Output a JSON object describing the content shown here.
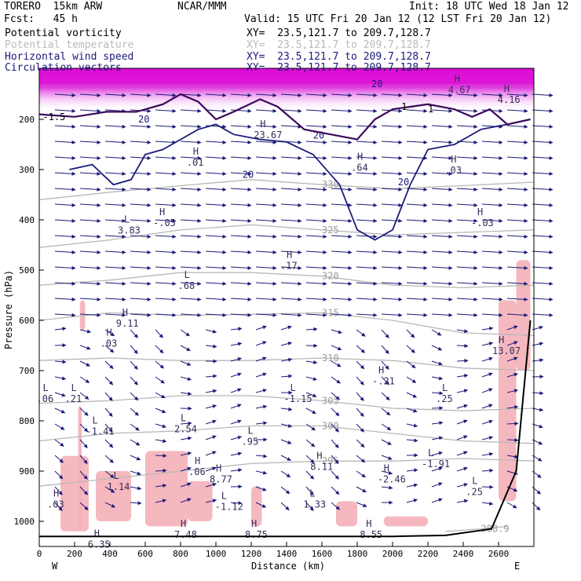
{
  "header": {
    "model": "TORERO  15km ARW",
    "center": "NCAR/MMM",
    "init": "Init: 18 UTC Wed 18 Jan 12",
    "fcst": "Fcst:   45 h",
    "valid": "Valid: 15 UTC Fri 20 Jan 12 (12 LST Fri 20 Jan 12)"
  },
  "fields": [
    {
      "name": "Potential vorticity",
      "color": "#000000",
      "xy": "XY=  23.5,121.7 to 209.7,128.7"
    },
    {
      "name": "Potential temperature",
      "color": "#bbbbbb",
      "xy": "XY=  23.5,121.7 to 209.7,128.7"
    },
    {
      "name": "Horizontal wind speed",
      "color": "#1a1a7a",
      "xy": "XY=  23.5,121.7 to 209.7,128.7"
    },
    {
      "name": "Circulation vectors",
      "color": "#1a1a7a",
      "xy": "XY=  23.5,121.7 to 209.7,128.7"
    }
  ],
  "chart_data": {
    "type": "cross-section",
    "xlabel": "Distance (km)",
    "ylabel": "Pressure (hPa)",
    "x_ticks": [
      0,
      200,
      400,
      600,
      800,
      1000,
      1200,
      1400,
      1600,
      1800,
      2000,
      2200,
      2400,
      2600
    ],
    "y_ticks": [
      200,
      300,
      400,
      500,
      600,
      700,
      800,
      900,
      1000
    ],
    "xlim": [
      0,
      2800
    ],
    "ylim": [
      1080,
      100
    ],
    "y_scale": "linear-pressure",
    "x_end_labels": {
      "left": "W",
      "right": "E"
    },
    "theta_isentropes": [
      {
        "value": 330,
        "label": "330",
        "points": [
          [
            0,
            360
          ],
          [
            400,
            345
          ],
          [
            800,
            332
          ],
          [
            1200,
            320
          ],
          [
            1600,
            330
          ],
          [
            2000,
            338
          ],
          [
            2400,
            332
          ],
          [
            2800,
            325
          ]
        ]
      },
      {
        "value": 325,
        "label": "325",
        "points": [
          [
            0,
            455
          ],
          [
            400,
            440
          ],
          [
            800,
            420
          ],
          [
            1200,
            410
          ],
          [
            1600,
            420
          ],
          [
            2000,
            430
          ],
          [
            2400,
            425
          ],
          [
            2800,
            420
          ]
        ]
      },
      {
        "value": 320,
        "label": "320",
        "points": [
          [
            0,
            530
          ],
          [
            400,
            520
          ],
          [
            800,
            505
          ],
          [
            1200,
            505
          ],
          [
            1600,
            512
          ],
          [
            2000,
            530
          ],
          [
            2400,
            535
          ],
          [
            2800,
            530
          ]
        ]
      },
      {
        "value": 315,
        "label": "315",
        "points": [
          [
            0,
            600
          ],
          [
            400,
            585
          ],
          [
            800,
            590
          ],
          [
            1200,
            588
          ],
          [
            1600,
            585
          ],
          [
            2000,
            600
          ],
          [
            2400,
            625
          ],
          [
            2800,
            630
          ]
        ]
      },
      {
        "value": 310,
        "label": "310",
        "points": [
          [
            0,
            680
          ],
          [
            400,
            675
          ],
          [
            800,
            680
          ],
          [
            1200,
            680
          ],
          [
            1600,
            675
          ],
          [
            2000,
            680
          ],
          [
            2400,
            695
          ],
          [
            2800,
            700
          ]
        ]
      },
      {
        "value": 305,
        "label": "305",
        "points": [
          [
            0,
            765
          ],
          [
            400,
            760
          ],
          [
            800,
            750
          ],
          [
            1200,
            750
          ],
          [
            1600,
            760
          ],
          [
            2000,
            775
          ],
          [
            2400,
            780
          ],
          [
            2800,
            775
          ]
        ]
      },
      {
        "value": 300,
        "label": "300",
        "points": [
          [
            0,
            840
          ],
          [
            400,
            825
          ],
          [
            800,
            820
          ],
          [
            1200,
            810
          ],
          [
            1600,
            810
          ],
          [
            2000,
            825
          ],
          [
            2400,
            840
          ],
          [
            2800,
            845
          ]
        ]
      },
      {
        "value": 295,
        "label": "295",
        "points": [
          [
            0,
            930
          ],
          [
            400,
            915
          ],
          [
            800,
            900
          ],
          [
            1200,
            885
          ],
          [
            1600,
            880
          ],
          [
            2000,
            880
          ],
          [
            2400,
            875
          ],
          [
            2800,
            880
          ]
        ]
      },
      {
        "value": 288.9,
        "label": "288.9",
        "points": [
          [
            2300,
            1020
          ],
          [
            2500,
            1015
          ],
          [
            2650,
            1010
          ]
        ]
      }
    ],
    "pv_contour_labels": [
      "-1.5",
      "1",
      "1"
    ],
    "wind_speed_labels": [
      {
        "text": "20",
        "x": 560,
        "y": 200
      },
      {
        "text": "20",
        "x": 1150,
        "y": 310
      },
      {
        "text": "20",
        "x": 1550,
        "y": 232
      },
      {
        "text": "20",
        "x": 2030,
        "y": 325
      },
      {
        "text": "20",
        "x": 1880,
        "y": 130
      }
    ],
    "extrema": [
      {
        "type": "H",
        "value": ".01",
        "x": 870,
        "y": 280
      },
      {
        "type": "H",
        "value": "-.05",
        "x": 680,
        "y": 400
      },
      {
        "type": "L",
        "value": "3.83",
        "x": 480,
        "y": 415
      },
      {
        "type": "H",
        "value": "23.67",
        "x": 1250,
        "y": 225
      },
      {
        "type": "H",
        "value": "4.67",
        "x": 2350,
        "y": 135
      },
      {
        "type": "H",
        "value": "4.16",
        "x": 2630,
        "y": 155
      },
      {
        "type": "H",
        "value": ".64",
        "x": 1800,
        "y": 290
      },
      {
        "type": "H",
        "value": ".03",
        "x": 2330,
        "y": 295
      },
      {
        "type": "H",
        "value": "-.03",
        "x": 2480,
        "y": 400
      },
      {
        "type": "H",
        "value": ".17",
        "x": 1400,
        "y": 485
      },
      {
        "type": "L",
        "value": ".68",
        "x": 820,
        "y": 525
      },
      {
        "type": "H",
        "value": "9.11",
        "x": 470,
        "y": 600
      },
      {
        "type": "H",
        "value": ".03",
        "x": 380,
        "y": 640
      },
      {
        "type": "H",
        "value": "13.07",
        "x": 2600,
        "y": 655
      },
      {
        "type": "H",
        "value": "-.21",
        "x": 1920,
        "y": 715
      },
      {
        "type": "L",
        "value": "-1.15",
        "x": 1420,
        "y": 750
      },
      {
        "type": "L",
        "value": ".21",
        "x": 180,
        "y": 750
      },
      {
        "type": "L",
        "value": ".06",
        "x": 20,
        "y": 750
      },
      {
        "type": "L",
        "value": ".25",
        "x": 2280,
        "y": 750
      },
      {
        "type": "L",
        "value": "-1.41",
        "x": 300,
        "y": 815
      },
      {
        "type": "L",
        "value": "2.54",
        "x": 800,
        "y": 810
      },
      {
        "type": "L",
        "value": ".95",
        "x": 1180,
        "y": 835
      },
      {
        "type": "H",
        "value": "8.11",
        "x": 1570,
        "y": 885
      },
      {
        "type": "L",
        "value": "-1.91",
        "x": 2200,
        "y": 880
      },
      {
        "type": "H",
        "value": ".06",
        "x": 880,
        "y": 895
      },
      {
        "type": "H",
        "value": "8.77",
        "x": 1000,
        "y": 910
      },
      {
        "type": "H",
        "value": "-2.46",
        "x": 1950,
        "y": 910
      },
      {
        "type": "L",
        "value": "1.14",
        "x": 420,
        "y": 925
      },
      {
        "type": "L",
        "value": "-1.12",
        "x": 1030,
        "y": 965
      },
      {
        "type": "L",
        "value": "1.33",
        "x": 1530,
        "y": 960
      },
      {
        "type": "L",
        "value": ".25",
        "x": 2450,
        "y": 935
      },
      {
        "type": "H",
        "value": ".03",
        "x": 80,
        "y": 960
      },
      {
        "type": "H",
        "value": "6.35",
        "x": 310,
        "y": 1040
      },
      {
        "type": "H",
        "value": "7.48",
        "x": 800,
        "y": 1020
      },
      {
        "type": "H",
        "value": "8.75",
        "x": 1200,
        "y": 1020
      },
      {
        "type": "H",
        "value": "8.55",
        "x": 1850,
        "y": 1020
      }
    ],
    "surface_pressure": [
      [
        0,
        1030
      ],
      [
        1000,
        1030
      ],
      [
        2000,
        1030
      ],
      [
        2300,
        1028
      ],
      [
        2560,
        1015
      ],
      [
        2700,
        900
      ],
      [
        2780,
        600
      ]
    ],
    "colors": {
      "pv_fill": "#e010d8",
      "pv_line": "#3a0a5a",
      "theta": "#b8b8b8",
      "wind": "#1a1a7a",
      "pink": "#f4b0b8"
    }
  }
}
